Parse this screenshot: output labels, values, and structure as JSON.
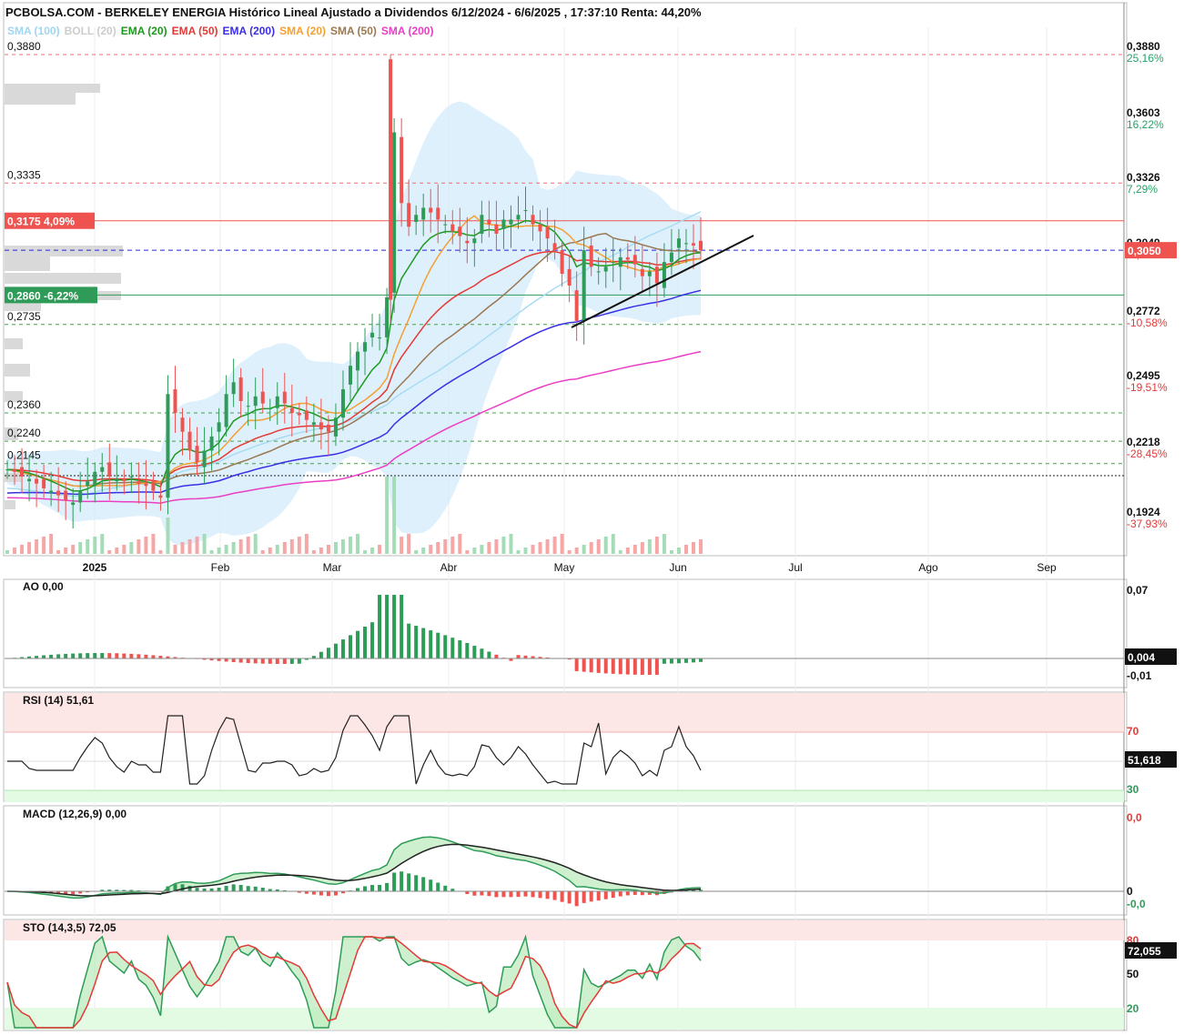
{
  "title": "PCBOLSA.COM - BERKELEY ENERGIA Histórico Lineal Ajustado a Dividendos 6/12/2024 - 6/6/2025 , 17:37:10 Renta: 44,20%",
  "legend": [
    {
      "label": "SMA (100)",
      "color": "#9fd6f2"
    },
    {
      "label": "BOLL (20)",
      "color": "#cccccc"
    },
    {
      "label": "EMA (20)",
      "color": "#1e9a1e"
    },
    {
      "label": "EMA (50)",
      "color": "#e53935"
    },
    {
      "label": "EMA (200)",
      "color": "#3a2ee6"
    },
    {
      "label": "SMA (20)",
      "color": "#f5a033"
    },
    {
      "label": "SMA (50)",
      "color": "#9a7852"
    },
    {
      "label": "SMA (200)",
      "color": "#ea3fc5"
    }
  ],
  "chart_data": [
    {
      "type": "candlestick",
      "months": [
        "2025",
        "Feb",
        "Mar",
        "Abr",
        "May",
        "Jun",
        "Jul",
        "Ago",
        "Sep"
      ],
      "ylim": [
        0.1924,
        0.388
      ],
      "right_axis_ticks": [
        {
          "price": "0,3880",
          "pct": "25,16%",
          "pct_color": "#26a269"
        },
        {
          "price": "0,3603",
          "pct": "16,22%",
          "pct_color": "#26a269"
        },
        {
          "price": "0,3326",
          "pct": "7,29%",
          "pct_color": "#26a269"
        },
        {
          "price": "0,3049",
          "pct": "-1,64%",
          "pct_color": "#e53935"
        },
        {
          "price": "0,2772",
          "pct": "-10,58%",
          "pct_color": "#e53935"
        },
        {
          "price": "0,2495",
          "pct": "-19,51%",
          "pct_color": "#e53935"
        },
        {
          "price": "0,2218",
          "pct": "-28,45%",
          "pct_color": "#e53935"
        },
        {
          "price": "0,1924",
          "pct": "-37,93%",
          "pct_color": "#e53935"
        }
      ],
      "levels": [
        {
          "label": "0,3880",
          "value": 0.388
        },
        {
          "label": "0,3335",
          "value": 0.3335
        },
        {
          "label": "0,2735",
          "value": 0.2735
        },
        {
          "label": "0,2360",
          "value": 0.236
        },
        {
          "label": "0,2240",
          "value": 0.224
        },
        {
          "label": "0,2145",
          "value": 0.2145
        }
      ],
      "resistance": {
        "label": "0,3175",
        "pct": "4,09%",
        "value": 0.3175
      },
      "support": {
        "label": "0,2860",
        "pct": "-6,22%",
        "value": 0.286
      },
      "last_price": {
        "label": "0,3050",
        "value": 0.305
      },
      "closes": [
        0.212,
        0.211,
        0.209,
        0.208,
        0.206,
        0.204,
        0.203,
        0.201,
        0.199,
        0.198,
        0.203,
        0.207,
        0.211,
        0.213,
        0.209,
        0.208,
        0.207,
        0.209,
        0.206,
        0.205,
        0.203,
        0.2,
        0.244,
        0.236,
        0.228,
        0.22,
        0.215,
        0.22,
        0.226,
        0.232,
        0.244,
        0.249,
        0.241,
        0.239,
        0.243,
        0.24,
        0.238,
        0.243,
        0.24,
        0.236,
        0.235,
        0.233,
        0.232,
        0.229,
        0.228,
        0.234,
        0.246,
        0.256,
        0.262,
        0.266,
        0.27,
        0.268,
        0.285,
        0.355,
        0.325,
        0.315,
        0.32,
        0.323,
        0.321,
        0.318,
        0.316,
        0.313,
        0.311,
        0.308,
        0.31,
        0.32,
        0.316,
        0.312,
        0.318,
        0.318,
        0.32,
        0.322,
        0.316,
        0.313,
        0.31,
        0.305,
        0.295,
        0.29,
        0.275,
        0.305,
        0.298,
        0.296,
        0.298,
        0.3,
        0.302,
        0.301,
        0.299,
        0.294,
        0.296,
        0.291,
        0.3,
        0.304,
        0.31,
        0.308,
        0.307,
        0.305
      ]
    },
    {
      "type": "bar",
      "name": "AO",
      "label": "AO   0,00",
      "last": "0,004",
      "axis": [
        "0,07",
        "-0,01"
      ],
      "ylim": [
        -0.015,
        0.08
      ]
    },
    {
      "type": "line",
      "name": "RSI",
      "label": "RSI (14)   51,61",
      "last": "51,618",
      "axis": [
        "70",
        "30"
      ],
      "ylim": [
        15,
        100
      ]
    },
    {
      "type": "line",
      "name": "MACD",
      "label": "MACD (12,26,9)   0,00",
      "last": "0",
      "axis": [
        "0,0",
        "0",
        "-0,0"
      ]
    },
    {
      "type": "line",
      "name": "STO",
      "label": "STO (14,3,5)   72,05",
      "last": "72,055",
      "axis": [
        "80",
        "50",
        "20"
      ],
      "ylim": [
        0,
        100
      ]
    }
  ]
}
